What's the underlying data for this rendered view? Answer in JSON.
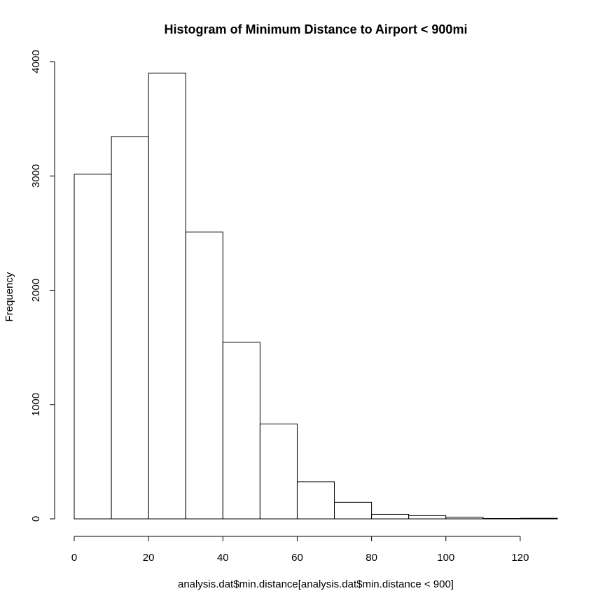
{
  "chart_data": {
    "type": "bar",
    "title": "Histogram of Minimum Distance to Airport < 900mi",
    "xlabel": "analysis.dat$min.distance[analysis.dat$min.distance < 900]",
    "ylabel": "Frequency",
    "bins": [
      {
        "from": 0,
        "to": 10,
        "value": 3015
      },
      {
        "from": 10,
        "to": 20,
        "value": 3345
      },
      {
        "from": 20,
        "to": 30,
        "value": 3900
      },
      {
        "from": 30,
        "to": 40,
        "value": 2510
      },
      {
        "from": 40,
        "to": 50,
        "value": 1545
      },
      {
        "from": 50,
        "to": 60,
        "value": 830
      },
      {
        "from": 60,
        "to": 70,
        "value": 325
      },
      {
        "from": 70,
        "to": 80,
        "value": 145
      },
      {
        "from": 80,
        "to": 90,
        "value": 40
      },
      {
        "from": 90,
        "to": 100,
        "value": 28
      },
      {
        "from": 100,
        "to": 110,
        "value": 15
      },
      {
        "from": 110,
        "to": 120,
        "value": 3
      },
      {
        "from": 120,
        "to": 130,
        "value": 5
      }
    ],
    "xlim": [
      0,
      130
    ],
    "ylim": [
      0,
      4000
    ],
    "xticks": [
      "0",
      "20",
      "40",
      "60",
      "80",
      "100",
      "120"
    ],
    "yticks": [
      "0",
      "1000",
      "2000",
      "3000",
      "4000"
    ],
    "grid": false,
    "legend": "none"
  }
}
